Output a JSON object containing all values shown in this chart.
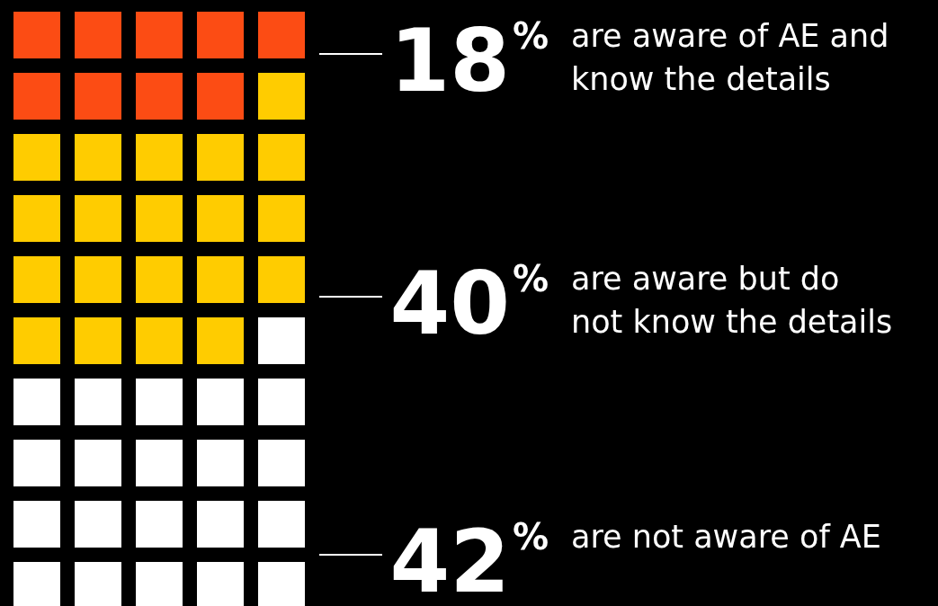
{
  "chart_data": {
    "type": "other",
    "categories": [
      "are aware of AE and\nknow the details",
      "are aware but do\nnot know the details",
      "are not aware of AE"
    ],
    "values": [
      18,
      40,
      42
    ],
    "value_labels": [
      "18%",
      "40%",
      "42%"
    ],
    "colors": [
      "#fc4c14",
      "#ffcc00",
      "#ffffff"
    ]
  }
}
